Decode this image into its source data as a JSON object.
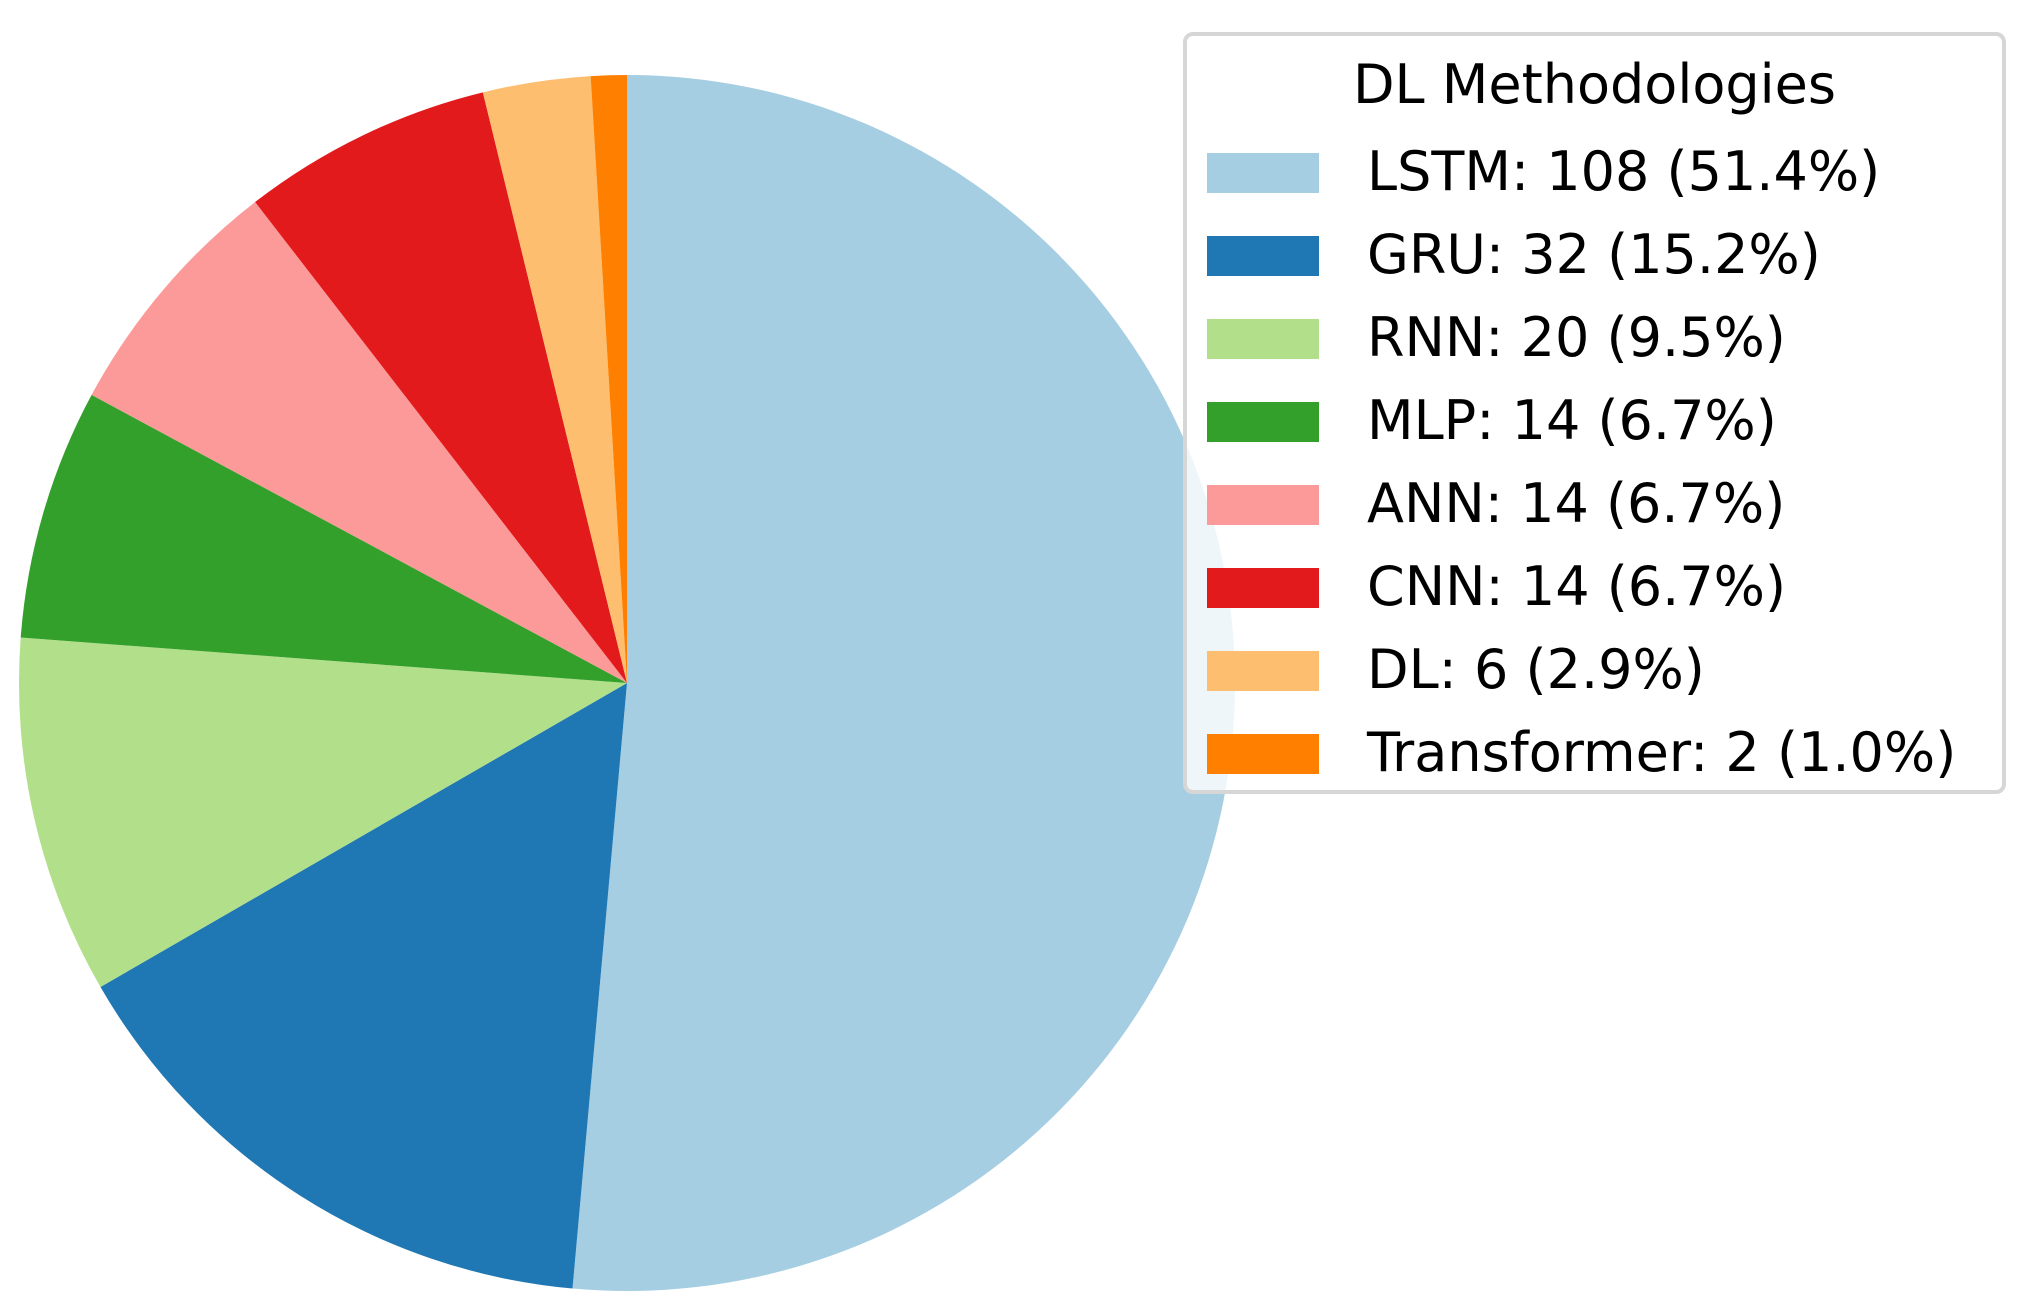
{
  "chart_data": {
    "type": "pie",
    "start_angle_deg": 90,
    "direction": "clockwise",
    "legend_placement": "top-right",
    "legend_title": "DL Methodologies",
    "slices": [
      {
        "label": "LSTM",
        "value": 108,
        "percent": 51.4,
        "color": "#a6cee3",
        "legend_text": "LSTM: 108 (51.4%)"
      },
      {
        "label": "GRU",
        "value": 32,
        "percent": 15.2,
        "color": "#1f78b4",
        "legend_text": "GRU: 32 (15.2%)"
      },
      {
        "label": "RNN",
        "value": 20,
        "percent": 9.5,
        "color": "#b2df8a",
        "legend_text": "RNN: 20 (9.5%)"
      },
      {
        "label": "MLP",
        "value": 14,
        "percent": 6.7,
        "color": "#33a02c",
        "legend_text": "MLP: 14 (6.7%)"
      },
      {
        "label": "ANN",
        "value": 14,
        "percent": 6.7,
        "color": "#fb9a99",
        "legend_text": "ANN: 14 (6.7%)"
      },
      {
        "label": "CNN",
        "value": 14,
        "percent": 6.7,
        "color": "#e31a1c",
        "legend_text": "CNN: 14 (6.7%)"
      },
      {
        "label": "DL",
        "value": 6,
        "percent": 2.9,
        "color": "#fdbf6f",
        "legend_text": "DL: 6 (2.9%)"
      },
      {
        "label": "Transformer",
        "value": 2,
        "percent": 1.0,
        "color": "#ff7f00",
        "legend_text": "Transformer: 2 (1.0%)"
      }
    ]
  }
}
